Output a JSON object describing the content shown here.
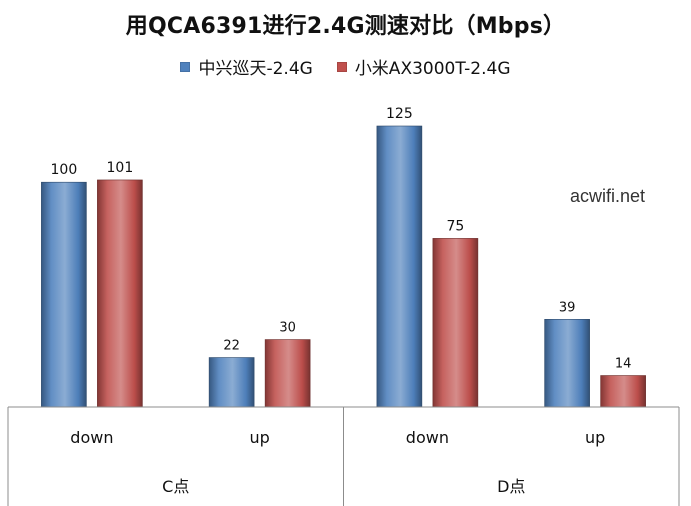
{
  "chart_data": {
    "type": "bar",
    "title": "用QCA6391进行2.4G测速对比（Mbps）",
    "categories": [
      "down",
      "up",
      "down",
      "up"
    ],
    "groups": [
      "C点",
      "D点"
    ],
    "group_spans": [
      2,
      2
    ],
    "series": [
      {
        "name": "中兴巡天-2.4G",
        "values": [
          100,
          22,
          125,
          39
        ],
        "color": "#4F81BD"
      },
      {
        "name": "小米AX3000T-2.4G",
        "values": [
          101,
          30,
          75,
          14
        ],
        "color": "#C0504D"
      }
    ],
    "ylim": [
      0,
      125
    ],
    "grid": false,
    "legend_position": "top-center",
    "xlabel": "",
    "ylabel": ""
  },
  "watermark_text": "acwifi.net"
}
